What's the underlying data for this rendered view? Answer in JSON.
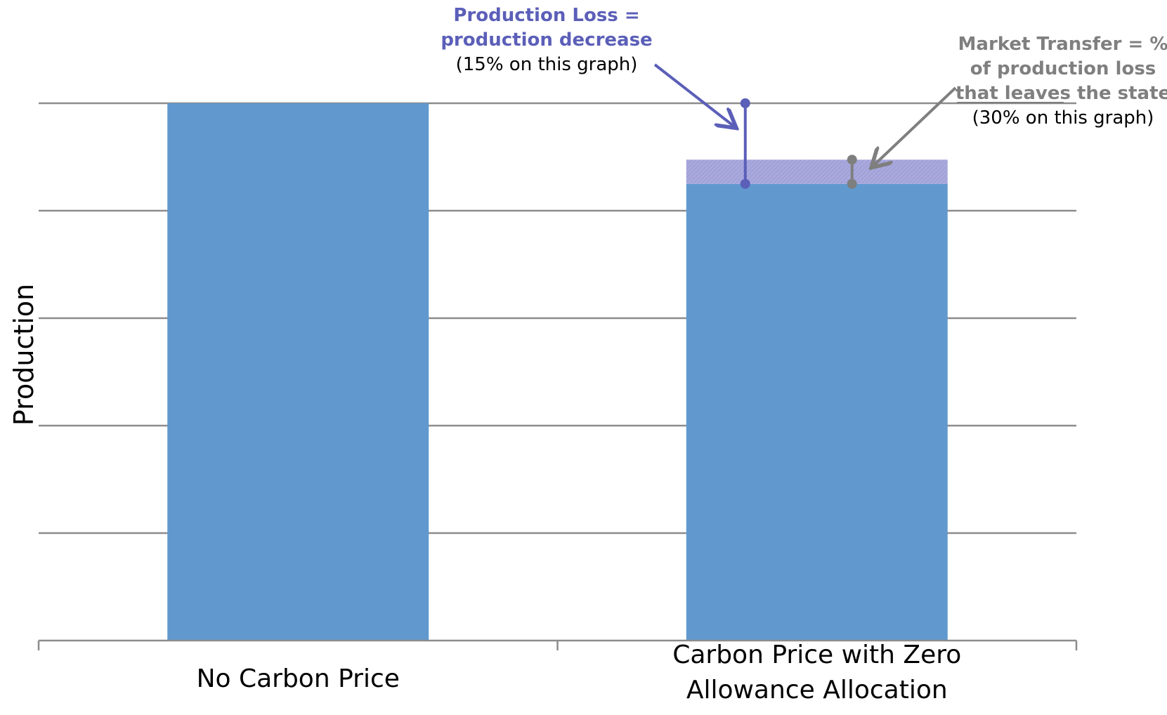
{
  "chart_data": {
    "type": "bar",
    "stacked": true,
    "categories": [
      "No Carbon Price",
      "Carbon Price with Zero Allowance Allocation"
    ],
    "category_label_lines": [
      [
        "No Carbon Price"
      ],
      [
        "Carbon Price with Zero",
        "Allowance Allocation"
      ]
    ],
    "series": [
      {
        "values": [
          100,
          85
        ],
        "color": "#6199cf"
      },
      {
        "values": [
          0,
          4.5
        ],
        "color": "#a9a9de"
      }
    ],
    "title": "",
    "xlabel": "",
    "ylabel": "Production",
    "ylim": [
      0,
      100
    ],
    "ytick_values": [
      0,
      20,
      40,
      60,
      80,
      100
    ],
    "show_ytick_labels": false,
    "grid": true,
    "gridline_color": "#8c8c8c",
    "legend": "none",
    "annotations": [
      {
        "id": "production-loss",
        "color": "#5b5fb8",
        "lines": [
          {
            "text": "Production Loss =",
            "bold": true
          },
          {
            "text": "production decrease",
            "bold": true
          },
          {
            "text": "(15% on this graph)",
            "bold": false
          }
        ],
        "bracket_category": 1,
        "bracket_from": 85,
        "bracket_to": 100,
        "value": "15%"
      },
      {
        "id": "market-transfer",
        "color": "#7f7f7f",
        "lines": [
          {
            "text": "Market Transfer = %",
            "bold": true
          },
          {
            "text": "of production loss",
            "bold": true
          },
          {
            "text": "that leaves the state",
            "bold": true
          },
          {
            "text": "(30% on this graph)",
            "bold": false
          }
        ],
        "bracket_category": 1,
        "bracket_from": 85,
        "bracket_to": 89.5,
        "value": "30%"
      }
    ]
  }
}
